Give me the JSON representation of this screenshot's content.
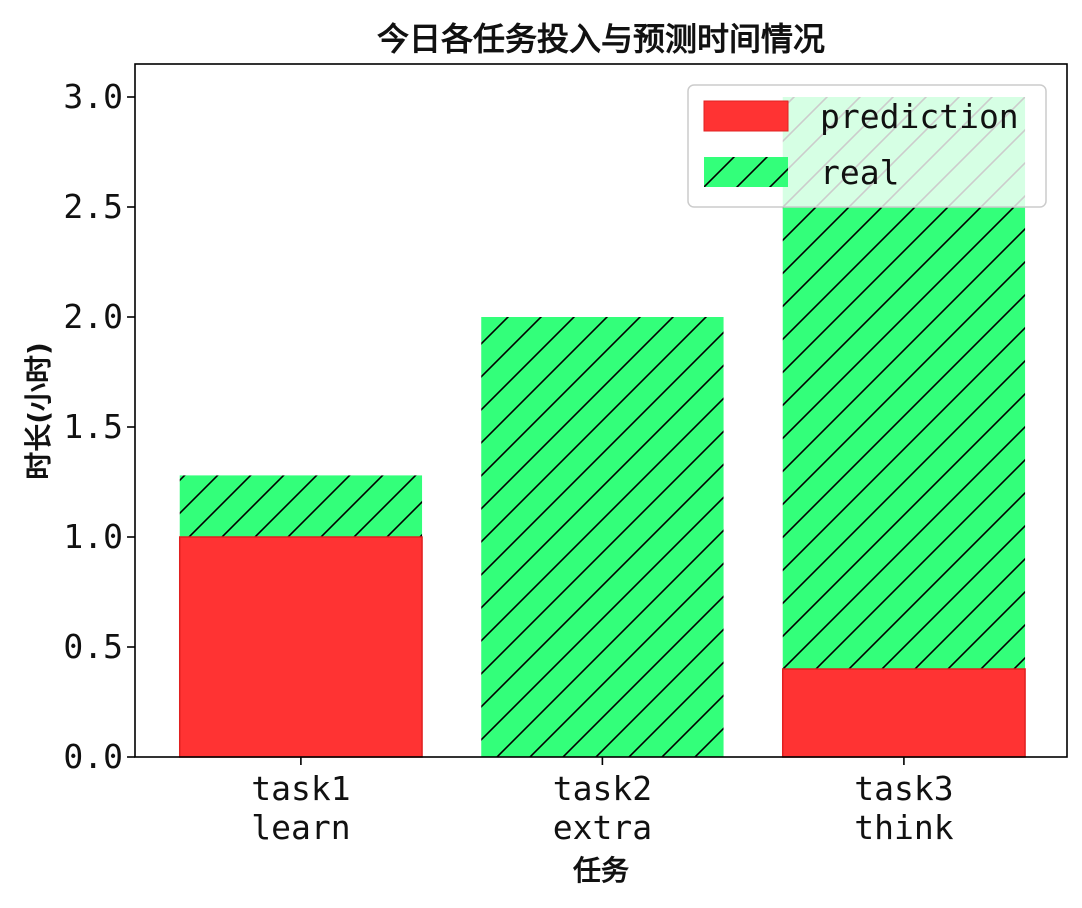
{
  "chart_data": {
    "type": "bar",
    "stacked": true,
    "title": "今日各任务投入与预测时间情况",
    "xlabel": "任务",
    "ylabel": "时长(小时)",
    "categories": [
      [
        "task1",
        "learn"
      ],
      [
        "task2",
        "extra"
      ],
      [
        "task3",
        "think"
      ]
    ],
    "series": [
      {
        "name": "prediction",
        "values": [
          1.0,
          0.0,
          0.4
        ],
        "color": "#ff3333",
        "hatch": "none"
      },
      {
        "name": "real",
        "values": [
          1.28,
          2.0,
          3.0
        ],
        "color": "#33ff7a",
        "hatch": "diagonal"
      }
    ],
    "ylim": [
      0,
      3.15
    ],
    "yticks": [
      "0.0",
      "0.5",
      "1.0",
      "1.5",
      "2.0",
      "2.5",
      "3.0"
    ],
    "ytick_values": [
      0,
      0.5,
      1.0,
      1.5,
      2.0,
      2.5,
      3.0
    ],
    "grid": false,
    "legend_position": "top-right"
  }
}
